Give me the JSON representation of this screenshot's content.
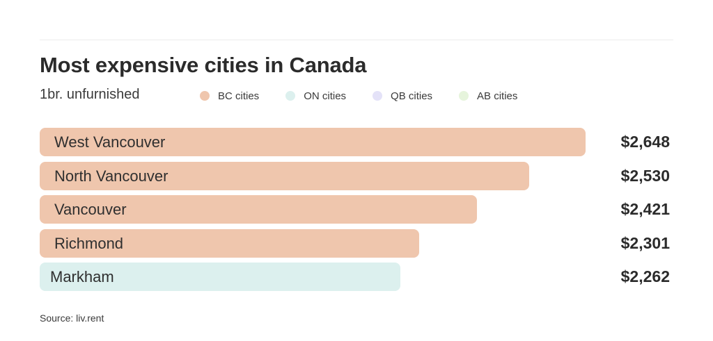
{
  "chart_data": {
    "type": "bar",
    "orientation": "horizontal",
    "title": "Most expensive cities in Canada",
    "subtitle": "1br. unfurnished",
    "source": "Source: liv.rent",
    "legend": [
      {
        "name": "BC cities",
        "color": "#efc6ad"
      },
      {
        "name": "ON cities",
        "color": "#dcf0ee"
      },
      {
        "name": "QB cities",
        "color": "#e4e2f8"
      },
      {
        "name": "AB cities",
        "color": "#e6f4dc"
      }
    ],
    "categories": [
      "West Vancouver",
      "North Vancouver",
      "Vancouver",
      "Richmond",
      "Markham"
    ],
    "values": [
      2648,
      2530,
      2421,
      2301,
      2262
    ],
    "value_labels": [
      "$2,648",
      "$2,530",
      "$2,421",
      "$2,301",
      "$2,262"
    ],
    "groups": [
      "BC cities",
      "BC cities",
      "BC cities",
      "BC cities",
      "ON cities"
    ]
  }
}
